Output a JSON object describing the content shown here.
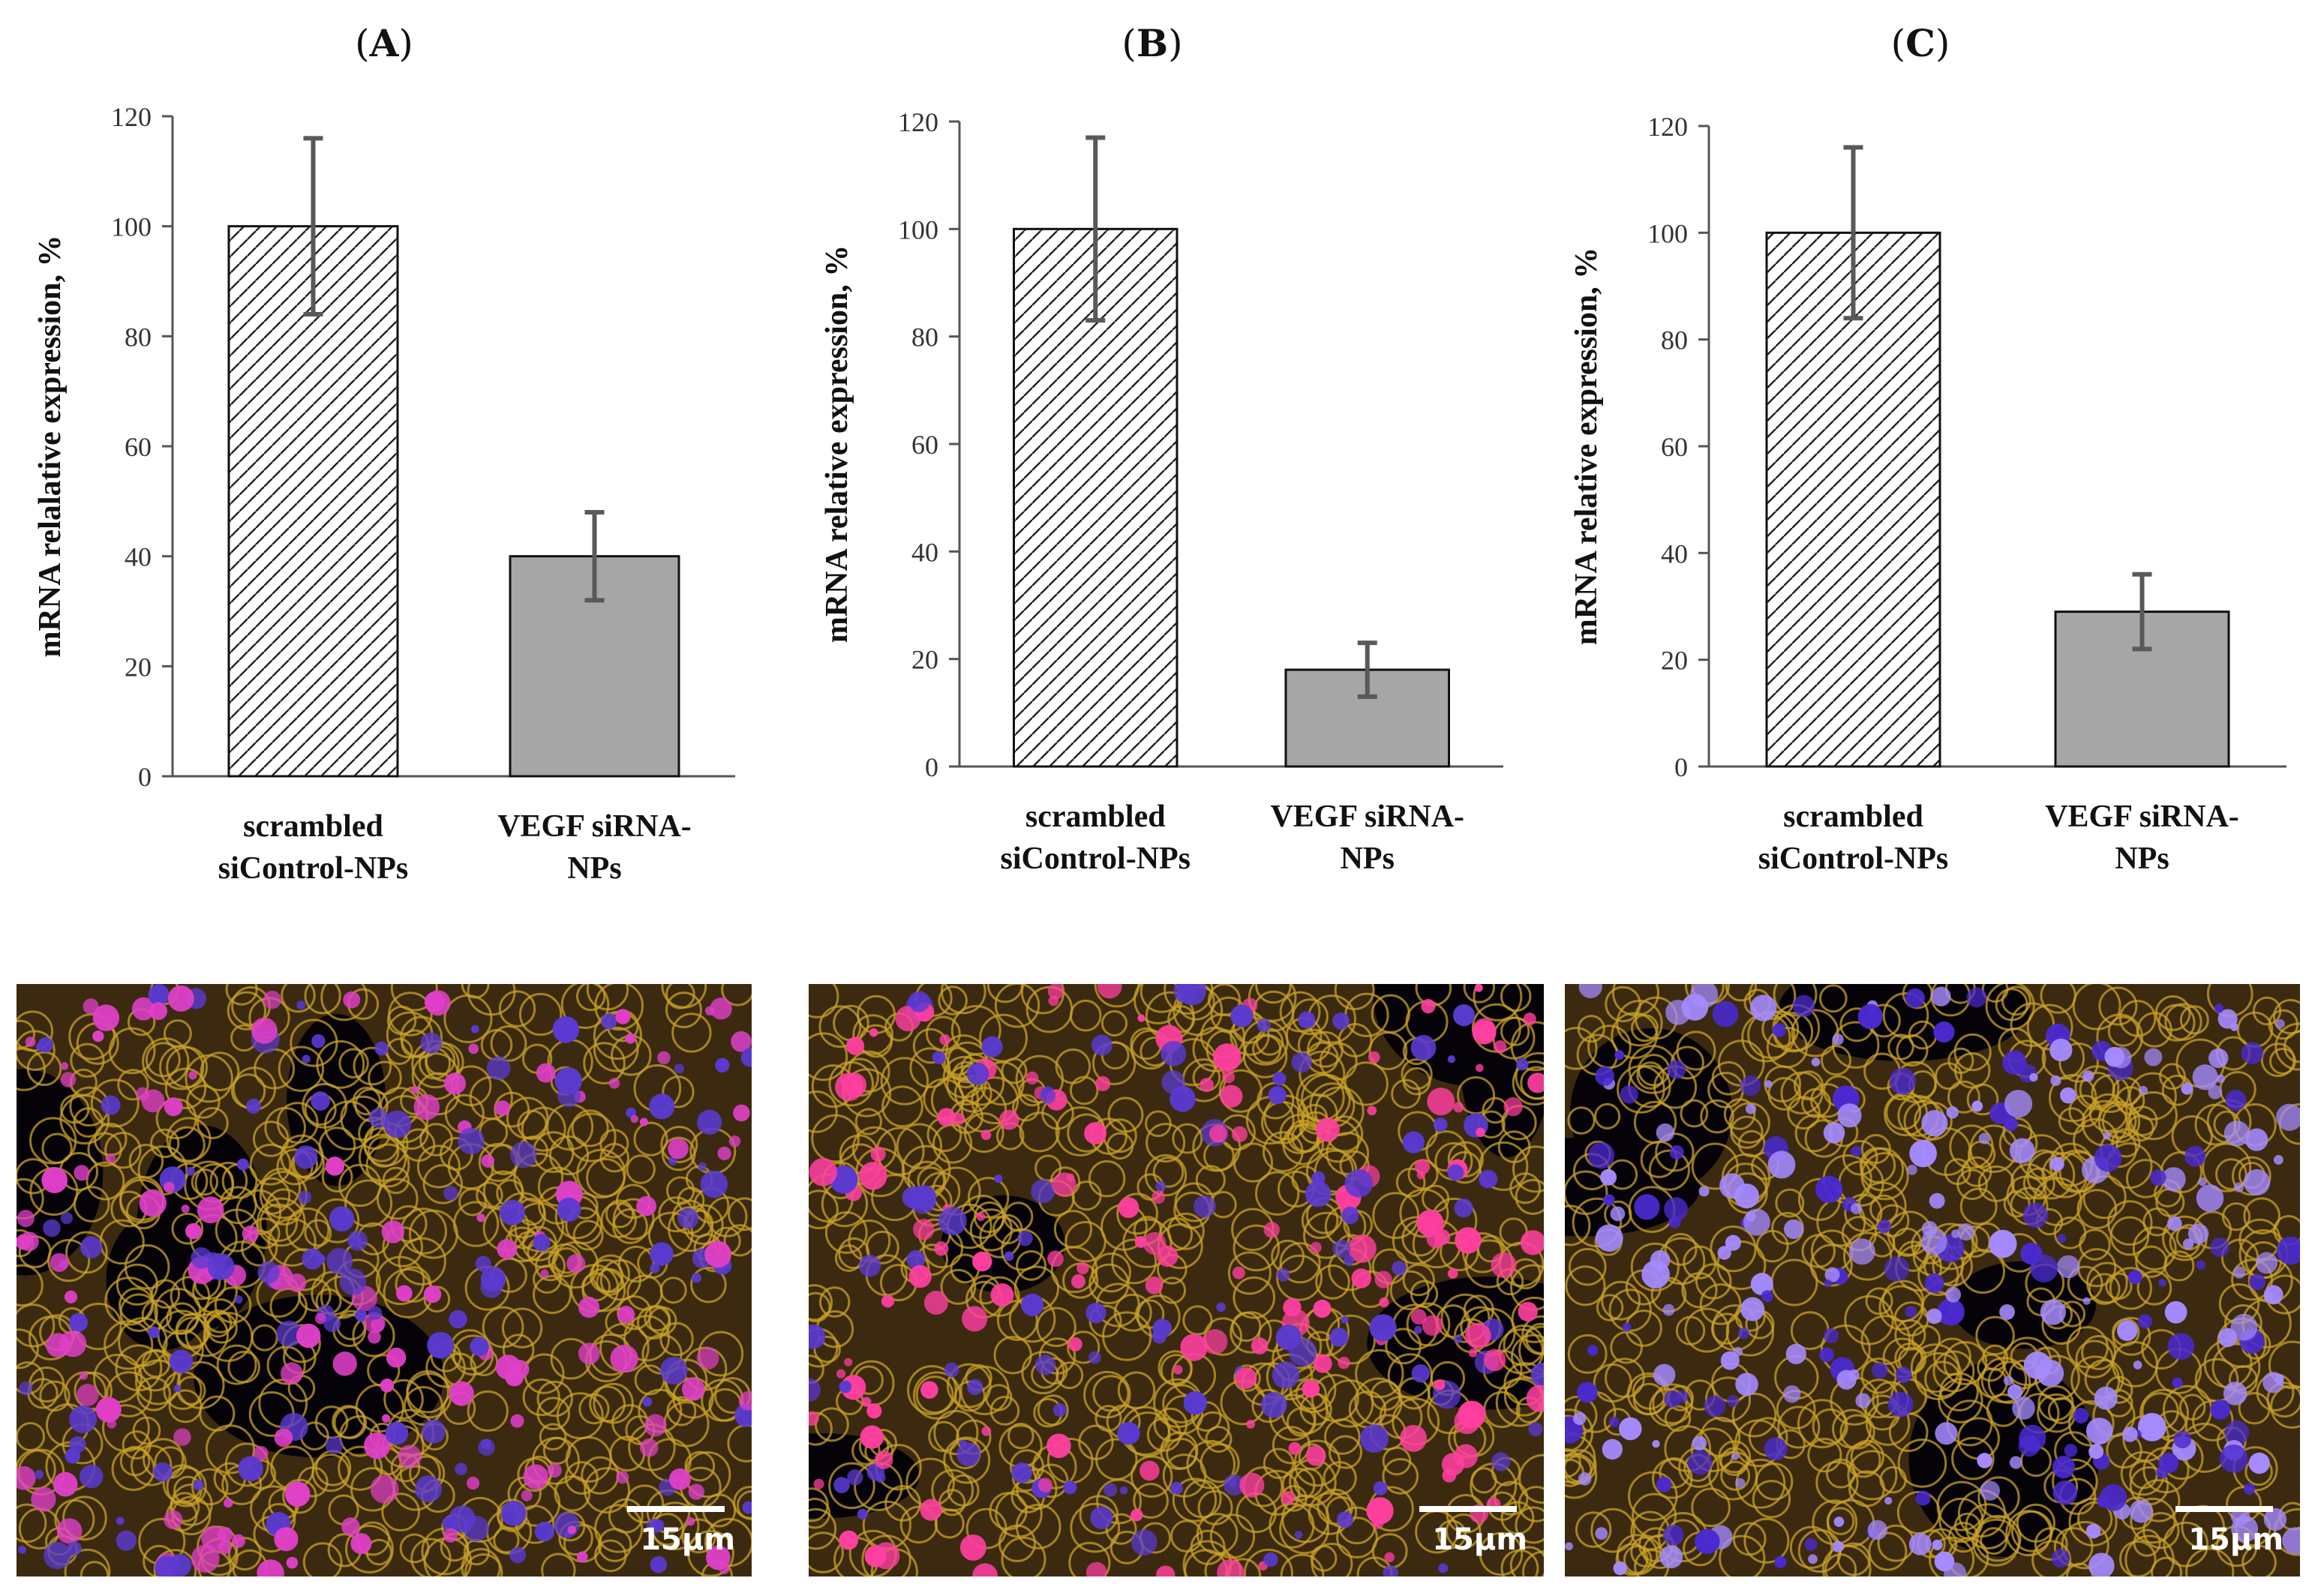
{
  "chart_data": [
    {
      "type": "bar",
      "panel_label": "A",
      "categories": [
        [
          "scrambled",
          "siControl-NPs"
        ],
        [
          "VEGF siRNA-",
          "NPs"
        ]
      ],
      "values": [
        100,
        40
      ],
      "errors": [
        16,
        8
      ],
      "ylabel": "mRNA relalative expression, %",
      "ylim": [
        0,
        120
      ],
      "yticks": [
        "0",
        "20",
        "40",
        "60",
        "80",
        "100",
        "120"
      ],
      "bar_styles": [
        "hatched",
        "solid"
      ],
      "bar_colors": [
        "#ffffff",
        "#a6a6a6"
      ],
      "error_color": "#595959",
      "grid": false
    },
    {
      "type": "bar",
      "panel_label": "B",
      "categories": [
        [
          "scrambled",
          "siControl-NPs"
        ],
        [
          "VEGF siRNA-",
          "NPs"
        ]
      ],
      "values": [
        100,
        18
      ],
      "errors": [
        17,
        5
      ],
      "ylabel": "mRNA relative expression, %",
      "ylim": [
        0,
        120
      ],
      "yticks": [
        "0",
        "20",
        "40",
        "60",
        "80",
        "100",
        "120"
      ],
      "bar_styles": [
        "hatched",
        "solid"
      ],
      "bar_colors": [
        "#ffffff",
        "#a6a6a6"
      ],
      "error_color": "#595959",
      "grid": false
    },
    {
      "type": "bar",
      "panel_label": "C",
      "categories": [
        [
          "scrambled",
          "siControl-NPs"
        ],
        [
          "VEGF siRNA-",
          "NPs"
        ]
      ],
      "values": [
        100,
        29
      ],
      "errors": [
        16,
        7
      ],
      "ylabel": "mRNA relative expression, %",
      "ylim": [
        0,
        120
      ],
      "yticks": [
        "0",
        "20",
        "40",
        "60",
        "80",
        "100",
        "120"
      ],
      "bar_styles": [
        "hatched",
        "solid"
      ],
      "bar_colors": [
        "#ffffff",
        "#a6a6a6"
      ],
      "error_color": "#595959",
      "grid": false
    }
  ],
  "micrographs": [
    {
      "scale_label": "15µm",
      "dominant_colors": [
        "#c9a227",
        "#e040c8",
        "#5a3ad0"
      ]
    },
    {
      "scale_label": "15µm",
      "dominant_colors": [
        "#c9a227",
        "#ff3fa0",
        "#5a3ad0"
      ]
    },
    {
      "scale_label": "15µm",
      "dominant_colors": [
        "#c9a227",
        "#a58bff",
        "#4a2ad0"
      ]
    }
  ]
}
